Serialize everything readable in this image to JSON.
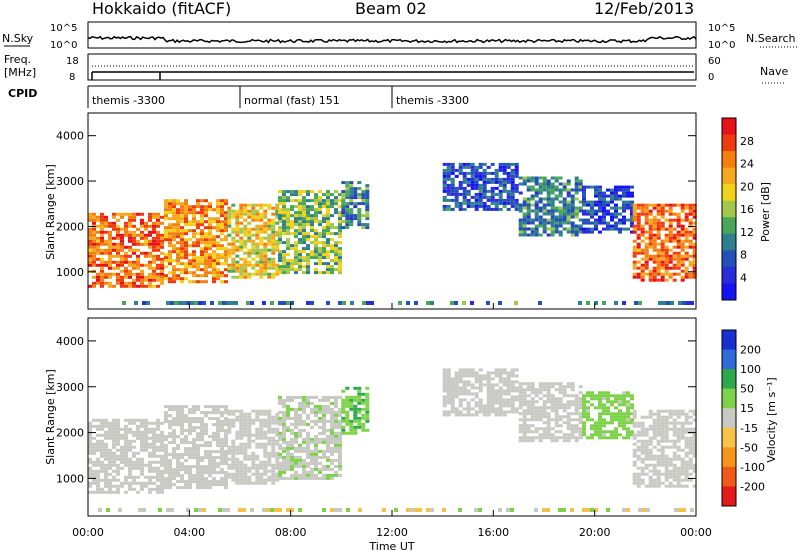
{
  "header": {
    "title": "Hokkaido (fitACF)",
    "beam": "Beam 02",
    "date": "12/Feb/2013"
  },
  "top_panels": {
    "nsky_label": "N.Sky",
    "nsearch_label": "N.Search",
    "nsky_ticks": [
      "10^5",
      "10^0"
    ],
    "nsearch_ticks": [
      "10^5",
      "10^0"
    ],
    "freq_label": "Freq.",
    "freq_unit": "[MHz]",
    "freq_ticks": [
      "18",
      "8"
    ],
    "nave_label": "Nave",
    "nave_ticks": [
      "60",
      "0"
    ],
    "cpid_label": "CPID",
    "cpid_segments": [
      {
        "label": "themis -3300",
        "start_hour": 0,
        "end_hour": 6
      },
      {
        "label": "normal (fast) 151",
        "start_hour": 6,
        "end_hour": 12
      },
      {
        "label": "themis -3300",
        "start_hour": 12,
        "end_hour": 24
      }
    ]
  },
  "power_panel": {
    "ylabel": "Slant Range [km]",
    "cbar_label": "Power [dB]",
    "cbar_ticks": [
      "28",
      "24",
      "20",
      "16",
      "12",
      "8",
      "4"
    ],
    "cbar_colors": [
      "#e8101a",
      "#f03a10",
      "#f57e10",
      "#f5a81c",
      "#f2d11a",
      "#a2c74a",
      "#49a658",
      "#2f7f8e",
      "#2350b8",
      "#2a2cd9",
      "#1414f0"
    ]
  },
  "velocity_panel": {
    "ylabel": "Slant Range [km]",
    "cbar_label": "Velocity [m s⁻¹]",
    "cbar_ticks": [
      "200",
      "100",
      "50",
      "15",
      "-15",
      "-50",
      "-100",
      "-200"
    ],
    "cbar_colors": [
      "#1a2fd0",
      "#2f6ad8",
      "#2ea84c",
      "#7ed24a",
      "#c9c9c3",
      "#f6c24a",
      "#f5951c",
      "#f05a18",
      "#e31a1c"
    ]
  },
  "xaxis": {
    "label": "Time UT",
    "ticks": [
      "00:00",
      "04:00",
      "08:00",
      "12:00",
      "16:00",
      "20:00",
      "00:00"
    ]
  },
  "chart_data": [
    {
      "type": "heatmap",
      "title": "Power",
      "xlabel": "Time UT",
      "ylabel": "Slant Range [km]",
      "xlim": [
        0,
        24
      ],
      "ylim": [
        180,
        4500
      ],
      "yticks": [
        1000,
        2000,
        3000,
        4000
      ],
      "colorbar": {
        "label": "Power [dB]",
        "range": [
          0,
          30
        ]
      },
      "echo_regions": [
        {
          "t0": 0.0,
          "t1": 3.0,
          "r0": 700,
          "r1": 2300,
          "db": 24
        },
        {
          "t0": 3.0,
          "t1": 5.5,
          "r0": 800,
          "r1": 2600,
          "db": 22
        },
        {
          "t0": 5.5,
          "t1": 7.5,
          "r0": 900,
          "r1": 2500,
          "db": 18
        },
        {
          "t0": 7.5,
          "t1": 10.0,
          "r0": 1000,
          "r1": 2800,
          "db": 14
        },
        {
          "t0": 10.0,
          "t1": 11.0,
          "r0": 2000,
          "r1": 3000,
          "db": 10
        },
        {
          "t0": 14.0,
          "t1": 17.0,
          "r0": 2400,
          "r1": 3400,
          "db": 6
        },
        {
          "t0": 17.0,
          "t1": 19.5,
          "r0": 1800,
          "r1": 3100,
          "db": 10
        },
        {
          "t0": 19.5,
          "t1": 21.5,
          "r0": 1900,
          "r1": 2900,
          "db": 6
        },
        {
          "t0": 21.5,
          "t1": 24.0,
          "r0": 800,
          "r1": 2500,
          "db": 24
        }
      ]
    },
    {
      "type": "heatmap",
      "title": "Velocity",
      "xlabel": "Time UT",
      "ylabel": "Slant Range [km]",
      "xlim": [
        0,
        24
      ],
      "ylim": [
        180,
        4500
      ],
      "yticks": [
        1000,
        2000,
        3000,
        4000
      ],
      "colorbar": {
        "label": "Velocity [m s⁻¹]",
        "range": [
          -200,
          200
        ]
      },
      "echo_regions": [
        {
          "t0": 0.0,
          "t1": 3.0,
          "r0": 700,
          "r1": 2300,
          "vel": 0
        },
        {
          "t0": 3.0,
          "t1": 5.5,
          "r0": 800,
          "r1": 2600,
          "vel": 0
        },
        {
          "t0": 5.5,
          "t1": 7.5,
          "r0": 900,
          "r1": 2500,
          "vel": 0
        },
        {
          "t0": 7.5,
          "t1": 10.0,
          "r0": 1000,
          "r1": 2800,
          "vel": 10
        },
        {
          "t0": 10.0,
          "t1": 11.0,
          "r0": 2000,
          "r1": 3000,
          "vel": 60
        },
        {
          "t0": 14.0,
          "t1": 17.0,
          "r0": 2400,
          "r1": 3400,
          "vel": 0
        },
        {
          "t0": 17.0,
          "t1": 19.5,
          "r0": 1800,
          "r1": 3100,
          "vel": 0
        },
        {
          "t0": 19.5,
          "t1": 21.5,
          "r0": 1900,
          "r1": 2900,
          "vel": 40
        },
        {
          "t0": 21.5,
          "t1": 24.0,
          "r0": 800,
          "r1": 2500,
          "vel": 0
        }
      ]
    }
  ]
}
